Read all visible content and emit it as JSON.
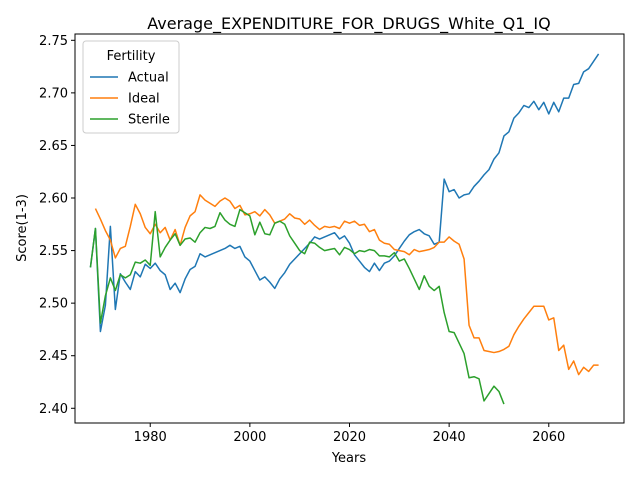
{
  "chart_data": {
    "type": "line",
    "title": "Average_EXPENDITURE_FOR_DRUGS_White_Q1_IQ",
    "xlabel": "Years",
    "ylabel": "Score(1-3)",
    "xlim": [
      1964.9,
      2075.1
    ],
    "ylim": [
      2.386,
      2.756
    ],
    "xticks": [
      1980,
      2000,
      2020,
      2040,
      2060
    ],
    "yticks": [
      2.4,
      2.45,
      2.5,
      2.55,
      2.6,
      2.65,
      2.7,
      2.75
    ],
    "xtick_labels": [
      "1980",
      "2000",
      "2020",
      "2040",
      "2060"
    ],
    "ytick_labels": [
      "2.40",
      "2.45",
      "2.50",
      "2.55",
      "2.60",
      "2.65",
      "2.70",
      "2.75"
    ],
    "grid": false,
    "legend": {
      "title": "Fertility",
      "position": "top-left"
    },
    "series": [
      {
        "name": "Actual",
        "color": "#1f77b4",
        "x": [
          1968,
          1969,
          1970,
          1971,
          1972,
          1973,
          1974,
          1975,
          1976,
          1977,
          1978,
          1979,
          1980,
          1981,
          1982,
          1983,
          1984,
          1985,
          1986,
          1987,
          1988,
          1989,
          1990,
          1991,
          1992,
          1993,
          1994,
          1995,
          1996,
          1997,
          1998,
          1999,
          2000,
          2001,
          2002,
          2003,
          2004,
          2005,
          2006,
          2007,
          2008,
          2009,
          2010,
          2011,
          2012,
          2013,
          2014,
          2015,
          2016,
          2017,
          2018,
          2019,
          2020,
          2021,
          2022,
          2023,
          2024,
          2025,
          2026,
          2027,
          2028,
          2029,
          2030,
          2031,
          2032,
          2033,
          2034,
          2035,
          2036,
          2037,
          2038,
          2039,
          2040,
          2041,
          2042,
          2043,
          2044,
          2045,
          2046,
          2047,
          2048,
          2049,
          2050,
          2051,
          2052,
          2053,
          2054,
          2055,
          2056,
          2057,
          2058,
          2059,
          2060,
          2061,
          2062,
          2063,
          2064,
          2065,
          2066,
          2067,
          2068,
          2069,
          2070
        ],
        "y": [
          2.534,
          2.571,
          2.473,
          2.498,
          2.573,
          2.494,
          2.528,
          2.52,
          2.513,
          2.53,
          2.525,
          2.537,
          2.533,
          2.538,
          2.531,
          2.527,
          2.513,
          2.519,
          2.51,
          2.523,
          2.532,
          2.535,
          2.547,
          2.544,
          2.546,
          2.548,
          2.55,
          2.552,
          2.555,
          2.552,
          2.554,
          2.544,
          2.54,
          2.531,
          2.522,
          2.525,
          2.52,
          2.514,
          2.523,
          2.529,
          2.537,
          2.542,
          2.547,
          2.552,
          2.557,
          2.563,
          2.561,
          2.563,
          2.565,
          2.567,
          2.561,
          2.564,
          2.557,
          2.546,
          2.54,
          2.534,
          2.53,
          2.538,
          2.531,
          2.538,
          2.54,
          2.545,
          2.552,
          2.559,
          2.565,
          2.568,
          2.57,
          2.566,
          2.564,
          2.556,
          2.558,
          2.618,
          2.606,
          2.608,
          2.6,
          2.603,
          2.604,
          2.611,
          2.616,
          2.622,
          2.627,
          2.637,
          2.643,
          2.659,
          2.663,
          2.676,
          2.681,
          2.688,
          2.686,
          2.692,
          2.684,
          2.691,
          2.68,
          2.691,
          2.682,
          2.695,
          2.695,
          2.708,
          2.709,
          2.72,
          2.723,
          2.73,
          2.737
        ]
      },
      {
        "name": "Ideal",
        "color": "#ff7f0e",
        "x": [
          1969,
          1970,
          1971,
          1972,
          1973,
          1974,
          1975,
          1976,
          1977,
          1978,
          1979,
          1980,
          1981,
          1982,
          1983,
          1984,
          1985,
          1986,
          1987,
          1988,
          1989,
          1990,
          1991,
          1992,
          1993,
          1994,
          1995,
          1996,
          1997,
          1998,
          1999,
          2000,
          2001,
          2002,
          2003,
          2004,
          2005,
          2006,
          2007,
          2008,
          2009,
          2010,
          2011,
          2012,
          2013,
          2014,
          2015,
          2016,
          2017,
          2018,
          2019,
          2020,
          2021,
          2022,
          2023,
          2024,
          2025,
          2026,
          2027,
          2028,
          2029,
          2030,
          2031,
          2032,
          2033,
          2034,
          2035,
          2036,
          2037,
          2038,
          2039,
          2040,
          2041,
          2042,
          2043,
          2044,
          2045,
          2046,
          2047,
          2048,
          2049,
          2050,
          2051,
          2052,
          2053,
          2054,
          2055,
          2056,
          2057,
          2058,
          2059,
          2060,
          2061,
          2062,
          2063,
          2064,
          2065,
          2066,
          2067,
          2068,
          2069,
          2070
        ],
        "y": [
          2.59,
          2.58,
          2.569,
          2.56,
          2.543,
          2.552,
          2.554,
          2.573,
          2.594,
          2.585,
          2.572,
          2.566,
          2.575,
          2.567,
          2.572,
          2.56,
          2.57,
          2.555,
          2.572,
          2.583,
          2.587,
          2.603,
          2.598,
          2.595,
          2.592,
          2.597,
          2.6,
          2.597,
          2.59,
          2.593,
          2.584,
          2.585,
          2.587,
          2.583,
          2.589,
          2.584,
          2.576,
          2.578,
          2.58,
          2.585,
          2.581,
          2.58,
          2.575,
          2.579,
          2.574,
          2.57,
          2.573,
          2.572,
          2.573,
          2.571,
          2.578,
          2.576,
          2.578,
          2.574,
          2.575,
          2.568,
          2.57,
          2.56,
          2.557,
          2.556,
          2.551,
          2.55,
          2.549,
          2.546,
          2.551,
          2.549,
          2.55,
          2.551,
          2.553,
          2.558,
          2.558,
          2.563,
          2.559,
          2.556,
          2.542,
          2.479,
          2.467,
          2.467,
          2.455,
          2.454,
          2.453,
          2.454,
          2.456,
          2.459,
          2.47,
          2.478,
          2.485,
          2.491,
          2.497,
          2.497,
          2.497,
          2.484,
          2.486,
          2.455,
          2.46,
          2.437,
          2.445,
          2.432,
          2.439,
          2.435,
          2.441,
          2.441
        ]
      },
      {
        "name": "Sterile",
        "color": "#2ca02c",
        "x": [
          1968,
          1969,
          1970,
          1971,
          1972,
          1973,
          1974,
          1975,
          1976,
          1977,
          1978,
          1979,
          1980,
          1981,
          1982,
          1983,
          1984,
          1985,
          1986,
          1987,
          1988,
          1989,
          1990,
          1991,
          1992,
          1993,
          1994,
          1995,
          1996,
          1997,
          1998,
          1999,
          2000,
          2001,
          2002,
          2003,
          2004,
          2005,
          2006,
          2007,
          2008,
          2009,
          2010,
          2011,
          2012,
          2013,
          2014,
          2015,
          2016,
          2017,
          2018,
          2019,
          2020,
          2021,
          2022,
          2023,
          2024,
          2025,
          2026,
          2027,
          2028,
          2029,
          2030,
          2031,
          2032,
          2033,
          2034,
          2035,
          2036,
          2037,
          2038,
          2039,
          2040,
          2041,
          2042,
          2043,
          2044,
          2045,
          2046,
          2047,
          2048,
          2049,
          2050,
          2051
        ],
        "y": [
          2.534,
          2.571,
          2.481,
          2.507,
          2.524,
          2.512,
          2.527,
          2.524,
          2.527,
          2.539,
          2.538,
          2.541,
          2.536,
          2.587,
          2.544,
          2.553,
          2.56,
          2.566,
          2.555,
          2.561,
          2.562,
          2.558,
          2.567,
          2.572,
          2.571,
          2.573,
          2.586,
          2.579,
          2.575,
          2.573,
          2.589,
          2.586,
          2.583,
          2.565,
          2.577,
          2.566,
          2.565,
          2.576,
          2.578,
          2.575,
          2.564,
          2.557,
          2.55,
          2.547,
          2.558,
          2.557,
          2.553,
          2.55,
          2.551,
          2.552,
          2.546,
          2.553,
          2.551,
          2.547,
          2.55,
          2.549,
          2.551,
          2.55,
          2.545,
          2.545,
          2.544,
          2.548,
          2.54,
          2.542,
          2.533,
          2.523,
          2.513,
          2.526,
          2.516,
          2.512,
          2.516,
          2.491,
          2.473,
          2.472,
          2.462,
          2.452,
          2.429,
          2.43,
          2.428,
          2.407,
          2.414,
          2.421,
          2.416,
          2.404
        ]
      }
    ]
  }
}
